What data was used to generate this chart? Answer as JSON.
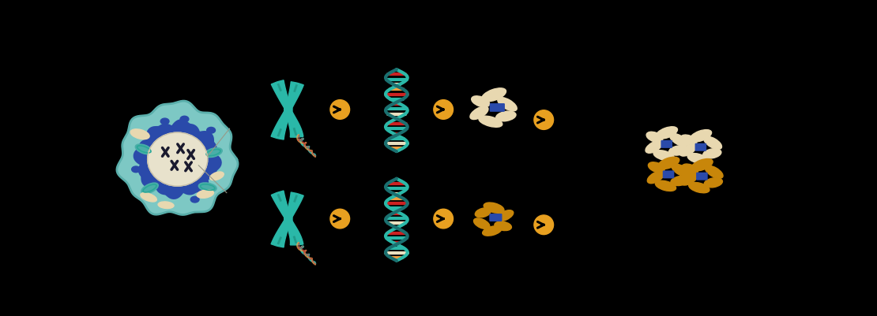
{
  "background_color": "#000000",
  "cell_color": "#7dc8c4",
  "cell_outline": "#5aafab",
  "nucleus_color": "#e8e2cc",
  "nucleus_ring_color": "#2a4aaa",
  "chromosome_color": "#2ab8a8",
  "chromosome_dark": "#1a8878",
  "dna_strand1": "#2ab8a8",
  "dna_strand2": "#1a7070",
  "dna_rungs": [
    "#cc2222",
    "#2ab8a8",
    "#ddddcc",
    "#2ab8a8",
    "#cc2222",
    "#e8c060"
  ],
  "arrow_color": "#e8a020",
  "alpha_color": "#e8d8b0",
  "alpha_outline": "#c8b890",
  "beta_color": "#c8860a",
  "beta_outline": "#a06008",
  "heme_color": "#2a4aaa",
  "mito_color": "#4aaea8",
  "organelle_blue": "#2a4aaa",
  "organelle_cream": "#e8d8b0"
}
